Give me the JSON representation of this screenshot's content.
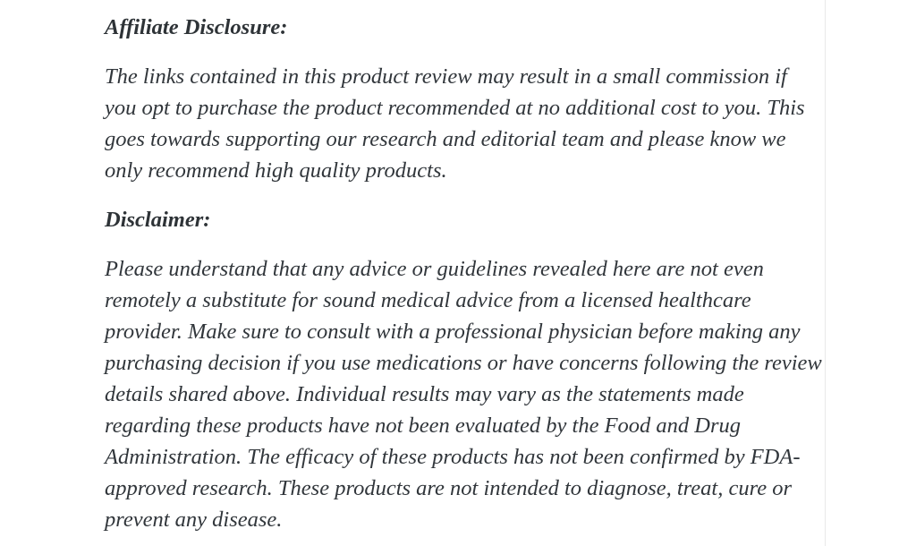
{
  "page": {
    "background_color": "#ffffff",
    "text_color": "#31363b",
    "divider_color": "#e9e9e9"
  },
  "content": {
    "sections": [
      {
        "heading": "Affiliate Disclosure:",
        "lines": [
          "The links contained in this product review may result in a small commission if",
          "you opt to purchase the product recommended at no additional cost to you. This",
          "goes towards supporting our research and editorial team and please know we",
          "only recommend high quality products."
        ]
      },
      {
        "heading": "Disclaimer:",
        "lines": [
          "Please understand that any advice or guidelines revealed here are not even",
          "remotely a substitute for sound medical advice from a licensed healthcare",
          "provider. Make sure to consult with a professional physician before making any",
          "purchasing decision if you use medications or have concerns following the review",
          "details shared above. Individual results may vary as the statements made",
          "regarding these products have not been evaluated by the Food and Drug",
          "Administration. The efficacy of these products has not been confirmed by FDA-",
          "approved research. These products are not intended to diagnose, treat, cure or",
          "prevent any disease."
        ]
      }
    ]
  }
}
